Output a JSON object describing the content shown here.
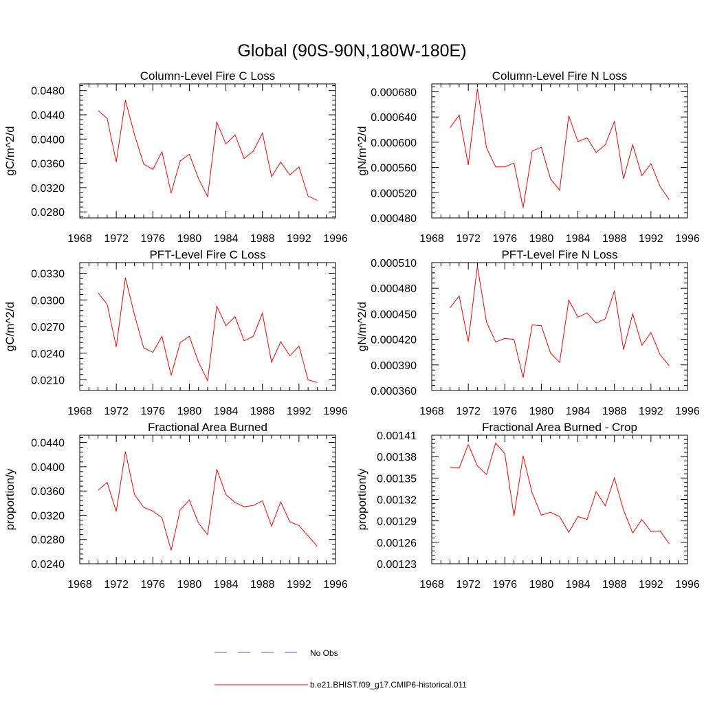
{
  "figure": {
    "title": "Global (90S-90N,180W-180E)"
  },
  "chart_data": [
    {
      "type": "line",
      "title": "Column-Level Fire C Loss",
      "xlabel": "",
      "ylabel": "gC/m^2/d",
      "xlim": [
        1968,
        1996
      ],
      "ylim": [
        0.027,
        0.0491
      ],
      "xticks": [
        "1968",
        "1972",
        "1976",
        "1980",
        "1984",
        "1988",
        "1992",
        "1996"
      ],
      "yticks": [
        "0.0280",
        "0.0320",
        "0.0360",
        "0.0400",
        "0.0440",
        "0.0480"
      ],
      "x": [
        1970,
        1971,
        1972,
        1973,
        1974,
        1975,
        1976,
        1977,
        1978,
        1979,
        1980,
        1981,
        1982,
        1983,
        1984,
        1985,
        1986,
        1987,
        1988,
        1989,
        1990,
        1991,
        1992,
        1993,
        1994
      ],
      "series": [
        {
          "name": "b.e21.BHIST.f09_g17.CMIP6-historical.011",
          "color": "#ff0000",
          "values": [
            0.0447,
            0.0434,
            0.0362,
            0.0464,
            0.0407,
            0.0359,
            0.035,
            0.0379,
            0.0311,
            0.0364,
            0.0375,
            0.0335,
            0.0305,
            0.0428,
            0.0392,
            0.0407,
            0.0368,
            0.038,
            0.041,
            0.0338,
            0.0362,
            0.0341,
            0.0354,
            0.0306,
            0.0299
          ]
        }
      ]
    },
    {
      "type": "line",
      "title": "Column-Level Fire N Loss",
      "xlabel": "",
      "ylabel": "gN/m^2/d",
      "xlim": [
        1968,
        1996
      ],
      "ylim": [
        0.00048,
        0.0006925
      ],
      "xticks": [
        "1968",
        "1972",
        "1976",
        "1980",
        "1984",
        "1988",
        "1992",
        "1996"
      ],
      "yticks": [
        "0.000480",
        "0.000520",
        "0.000560",
        "0.000600",
        "0.000640",
        "0.000680"
      ],
      "x": [
        1970,
        1971,
        1972,
        1973,
        1974,
        1975,
        1976,
        1977,
        1978,
        1979,
        1980,
        1981,
        1982,
        1983,
        1984,
        1985,
        1986,
        1987,
        1988,
        1989,
        1990,
        1991,
        1992,
        1993,
        1994
      ],
      "series": [
        {
          "name": "b.e21.BHIST.f09_g17.CMIP6-historical.011",
          "color": "#ff0000",
          "values": [
            0.000623,
            0.000643,
            0.000564,
            0.000685,
            0.000591,
            0.000561,
            0.000561,
            0.000567,
            0.000496,
            0.000586,
            0.000592,
            0.000542,
            0.000524,
            0.000642,
            0.000601,
            0.000607,
            0.000584,
            0.000596,
            0.000633,
            0.000542,
            0.000596,
            0.000547,
            0.000566,
            0.00053,
            0.000509
          ]
        }
      ]
    },
    {
      "type": "line",
      "title": "PFT-Level Fire C Loss",
      "xlabel": "",
      "ylabel": "gC/m^2/d",
      "xlim": [
        1968,
        1996
      ],
      "ylim": [
        0.0198,
        0.0342
      ],
      "xticks": [
        "1968",
        "1972",
        "1976",
        "1980",
        "1984",
        "1988",
        "1992",
        "1996"
      ],
      "yticks": [
        "0.0210",
        "0.0240",
        "0.0270",
        "0.0300",
        "0.0330"
      ],
      "x": [
        1970,
        1971,
        1972,
        1973,
        1974,
        1975,
        1976,
        1977,
        1978,
        1979,
        1980,
        1981,
        1982,
        1983,
        1984,
        1985,
        1986,
        1987,
        1988,
        1989,
        1990,
        1991,
        1992,
        1993,
        1994
      ],
      "series": [
        {
          "name": "b.e21.BHIST.f09_g17.CMIP6-historical.011",
          "color": "#ff0000",
          "values": [
            0.0308,
            0.0295,
            0.0247,
            0.0325,
            0.0283,
            0.0246,
            0.0241,
            0.0259,
            0.0215,
            0.0252,
            0.0259,
            0.023,
            0.0209,
            0.0293,
            0.0271,
            0.0281,
            0.0254,
            0.0259,
            0.0285,
            0.023,
            0.0253,
            0.0237,
            0.0248,
            0.021,
            0.0207
          ]
        }
      ]
    },
    {
      "type": "line",
      "title": "PFT-Level Fire N Loss",
      "xlabel": "",
      "ylabel": "gN/m^2/d",
      "xlim": [
        1968,
        1996
      ],
      "ylim": [
        0.00036,
        0.00051
      ],
      "xticks": [
        "1968",
        "1972",
        "1976",
        "1980",
        "1984",
        "1988",
        "1992",
        "1996"
      ],
      "yticks": [
        "0.000360",
        "0.000390",
        "0.000420",
        "0.000450",
        "0.000480",
        "0.000510"
      ],
      "x": [
        1970,
        1971,
        1972,
        1973,
        1974,
        1975,
        1976,
        1977,
        1978,
        1979,
        1980,
        1981,
        1982,
        1983,
        1984,
        1985,
        1986,
        1987,
        1988,
        1989,
        1990,
        1991,
        1992,
        1993,
        1994
      ],
      "series": [
        {
          "name": "b.e21.BHIST.f09_g17.CMIP6-historical.011",
          "color": "#ff0000",
          "values": [
            0.000457,
            0.000471,
            0.000417,
            0.000506,
            0.00044,
            0.000417,
            0.000421,
            0.00042,
            0.000375,
            0.000437,
            0.000436,
            0.000404,
            0.000393,
            0.000466,
            0.000446,
            0.000451,
            0.000439,
            0.000444,
            0.000477,
            0.000408,
            0.00045,
            0.000413,
            0.000428,
            0.000402,
            0.000389
          ]
        }
      ]
    },
    {
      "type": "line",
      "title": "Fractional Area Burned",
      "xlabel": "",
      "ylabel": "proportion/y",
      "xlim": [
        1968,
        1996
      ],
      "ylim": [
        0.024,
        0.0452
      ],
      "xticks": [
        "1968",
        "1972",
        "1976",
        "1980",
        "1984",
        "1988",
        "1992",
        "1996"
      ],
      "yticks": [
        "0.0240",
        "0.0280",
        "0.0320",
        "0.0360",
        "0.0400",
        "0.0440"
      ],
      "x": [
        1970,
        1971,
        1972,
        1973,
        1974,
        1975,
        1976,
        1977,
        1978,
        1979,
        1980,
        1981,
        1982,
        1983,
        1984,
        1985,
        1986,
        1987,
        1988,
        1989,
        1990,
        1991,
        1992,
        1993,
        1994
      ],
      "series": [
        {
          "name": "b.e21.BHIST.f09_g17.CMIP6-historical.011",
          "color": "#ff0000",
          "values": [
            0.0361,
            0.0374,
            0.0326,
            0.0425,
            0.0354,
            0.0333,
            0.0327,
            0.0316,
            0.0262,
            0.0329,
            0.0345,
            0.0307,
            0.0288,
            0.0396,
            0.0354,
            0.0341,
            0.0334,
            0.0336,
            0.0344,
            0.0302,
            0.0342,
            0.0309,
            0.0303,
            0.0286,
            0.0269
          ]
        }
      ]
    },
    {
      "type": "line",
      "title": "Fractional Area Burned - Crop",
      "xlabel": "",
      "ylabel": "proportion/y",
      "xlim": [
        1968,
        1996
      ],
      "ylim": [
        0.00123,
        0.00141
      ],
      "xticks": [
        "1968",
        "1972",
        "1976",
        "1980",
        "1984",
        "1988",
        "1992",
        "1996"
      ],
      "yticks": [
        "0.00123",
        "0.00126",
        "0.00129",
        "0.00132",
        "0.00135",
        "0.00138",
        "0.00141"
      ],
      "x": [
        1970,
        1971,
        1972,
        1973,
        1974,
        1975,
        1976,
        1977,
        1978,
        1979,
        1980,
        1981,
        1982,
        1983,
        1984,
        1985,
        1986,
        1987,
        1988,
        1989,
        1990,
        1991,
        1992,
        1993,
        1994
      ],
      "series": [
        {
          "name": "b.e21.BHIST.f09_g17.CMIP6-historical.011",
          "color": "#ff0000",
          "values": [
            0.001365,
            0.001364,
            0.001397,
            0.001367,
            0.001355,
            0.001399,
            0.001384,
            0.001297,
            0.001381,
            0.001329,
            0.001298,
            0.001302,
            0.001296,
            0.001274,
            0.001296,
            0.001292,
            0.001331,
            0.001311,
            0.00135,
            0.001305,
            0.001273,
            0.001292,
            0.001275,
            0.001276,
            0.001258
          ]
        }
      ]
    }
  ],
  "legend": {
    "items": [
      {
        "label": "No Obs",
        "color": "#4a5fc1",
        "style": "dashed"
      },
      {
        "label": "b.e21.BHIST.f09_g17.CMIP6-historical.011",
        "color": "#ff0000",
        "style": "solid"
      }
    ]
  }
}
